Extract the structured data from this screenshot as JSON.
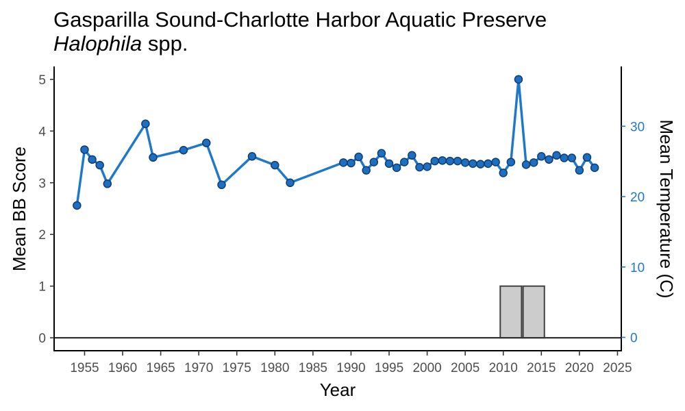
{
  "chart_data": {
    "type": "line",
    "title": "Gasparilla Sound-Charlotte Harbor Aquatic Preserve",
    "subtitle_italic": "Halophila",
    "subtitle_rest": " spp.",
    "xlabel": "Year",
    "ylabel": "Mean BB Score",
    "y2label": "Mean Temperature (C)",
    "xlim": [
      1951,
      2025.5
    ],
    "ylim": [
      -0.25,
      5.25
    ],
    "y2lim": [
      -1.9,
      38.5
    ],
    "x_ticks": [
      1955,
      1960,
      1965,
      1970,
      1975,
      1980,
      1985,
      1990,
      1995,
      2000,
      2005,
      2010,
      2015,
      2020,
      2025
    ],
    "y_ticks": [
      0,
      1,
      2,
      3,
      4,
      5
    ],
    "y2_ticks": [
      0,
      10,
      20,
      30
    ],
    "grid": false,
    "colors": {
      "line": "#1f78c8",
      "point_fill": "#1f6fc0",
      "point_stroke": "#0d3d73",
      "bar_fill": "#cccccc",
      "bar_stroke": "#404040",
      "axis": "#000000",
      "zero_line": "#333333",
      "right_axis": "#1f78c8"
    },
    "series": [
      {
        "x": [
          1954,
          1955,
          1956,
          1957,
          1958,
          1963,
          1964,
          1968,
          1971,
          1973,
          1977,
          1980,
          1982,
          1989,
          1990,
          1991,
          1992,
          1993,
          1994,
          1995,
          1996,
          1997,
          1998,
          1999,
          2000,
          2001,
          2002,
          2003,
          2004,
          2005,
          2006,
          2007,
          2008,
          2009,
          2010,
          2011,
          2012,
          2013,
          2014,
          2015,
          2016,
          2017,
          2018,
          2019,
          2020,
          2021,
          2022
        ],
        "y": [
          2.56,
          3.64,
          3.45,
          3.34,
          2.98,
          4.14,
          3.49,
          3.63,
          3.77,
          2.96,
          3.51,
          3.34,
          3.0,
          3.39,
          3.38,
          3.5,
          3.24,
          3.4,
          3.57,
          3.37,
          3.29,
          3.4,
          3.53,
          3.3,
          3.31,
          3.42,
          3.43,
          3.42,
          3.42,
          3.39,
          3.37,
          3.36,
          3.37,
          3.4,
          3.19,
          3.4,
          5.0,
          3.35,
          3.39,
          3.51,
          3.45,
          3.53,
          3.48,
          3.48,
          3.24,
          3.49,
          3.29
        ]
      }
    ],
    "bars": {
      "x": [
        2011,
        2014
      ],
      "values": [
        1,
        1
      ],
      "width": 2.8
    }
  }
}
